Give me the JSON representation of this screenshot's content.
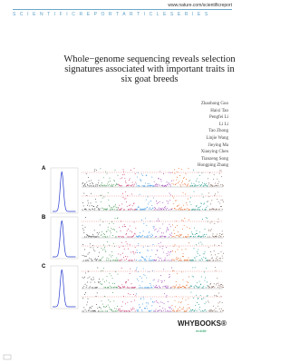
{
  "header": {
    "url": "www.nature.com/scientificreport",
    "series": "S C I E N T I F I C R E P O R T A R T I C L E S E R I E S"
  },
  "title": "Whole−genome sequencing reveals selection signatures associated with important traits in six goat breeds",
  "authors": [
    "Zhaohong Guo",
    "Haixi Tao",
    "Pengfei Li",
    "Li Li",
    "Tao Zhong",
    "Linjie Wang",
    "Jieying Ma",
    "Xiaoying Chen",
    "Tianzeng Song",
    "Hongping Zhang"
  ],
  "figure": {
    "panels": [
      "A",
      "B",
      "C"
    ]
  },
  "publisher": {
    "name": "WHYBOOKS®",
    "sub": "mobile"
  }
}
